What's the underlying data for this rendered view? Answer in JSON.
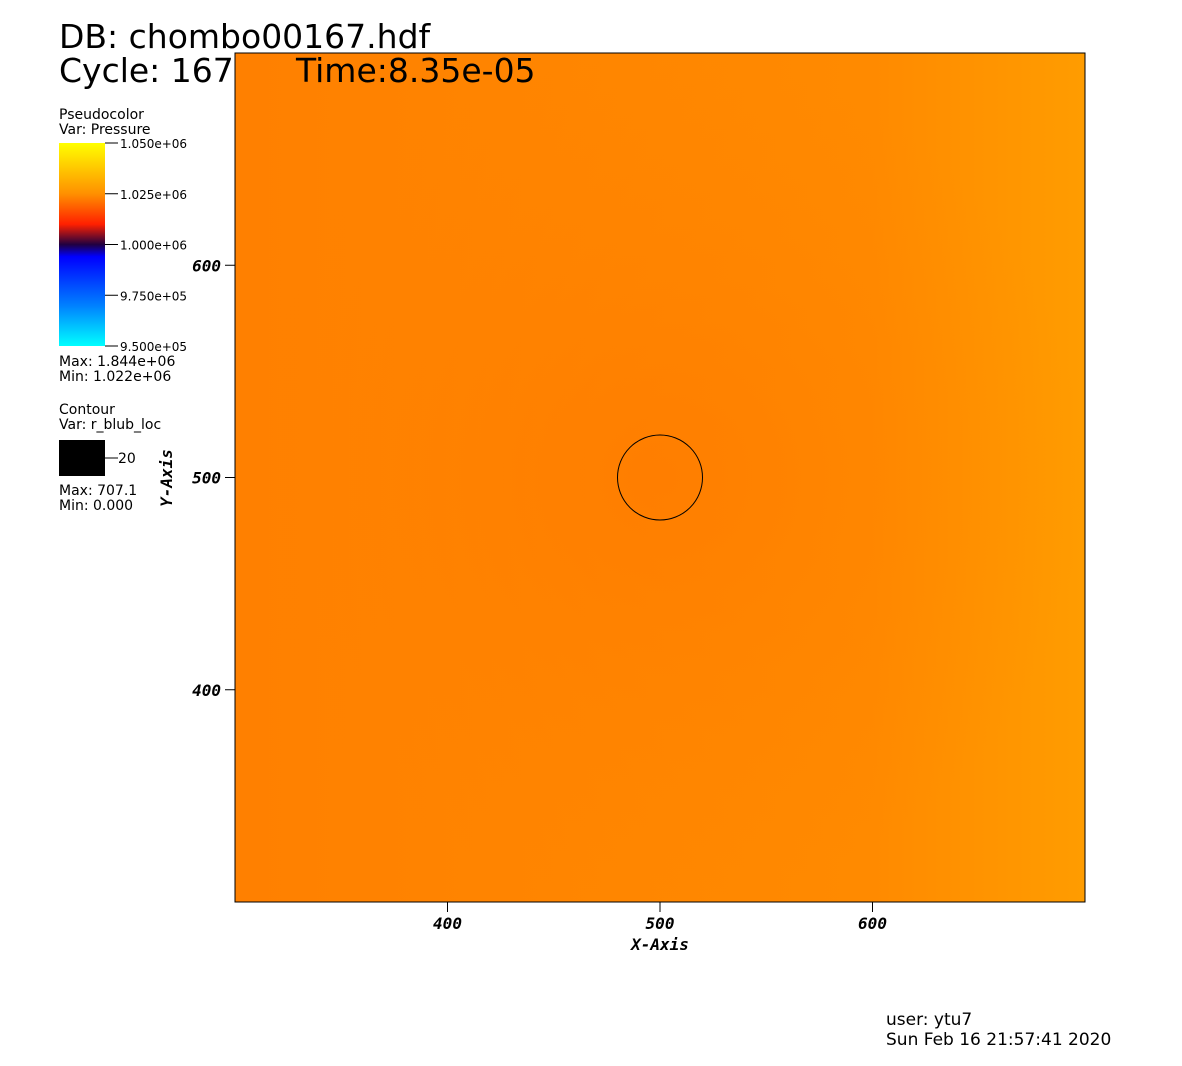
{
  "header": {
    "database": "DB: chombo00167.hdf",
    "cycle": "Cycle: 167",
    "time": "Time:8.35e-05"
  },
  "pseudocolor": {
    "title": "Pseudocolor",
    "var": "Var: Pressure",
    "range": [
      950000,
      1050000
    ],
    "ticks": [
      {
        "value": 1050000,
        "label": "1.050e+06"
      },
      {
        "value": 1025000,
        "label": "1.025e+06"
      },
      {
        "value": 1000000,
        "label": "1.000e+06"
      },
      {
        "value": 975000,
        "label": "9.750e+05"
      },
      {
        "value": 950000,
        "label": "9.500e+05"
      }
    ],
    "max": "Max:  1.844e+06",
    "min": "Min:  1.022e+06"
  },
  "contour": {
    "title": "Contour",
    "var": "Var: r_blub_loc",
    "level": 20,
    "max": "Max: 707.1",
    "min": "Min: 0.000"
  },
  "plot": {
    "xlabel": "X-Axis",
    "ylabel": "Y-Axis",
    "xlim": [
      300,
      700
    ],
    "ylim": [
      300,
      700
    ],
    "xticks": [
      400,
      500,
      600
    ],
    "yticks": [
      400,
      500,
      600
    ]
  },
  "footer": {
    "user": "user: ytu7",
    "date": "Sun Feb 16 21:57:41 2020"
  }
}
